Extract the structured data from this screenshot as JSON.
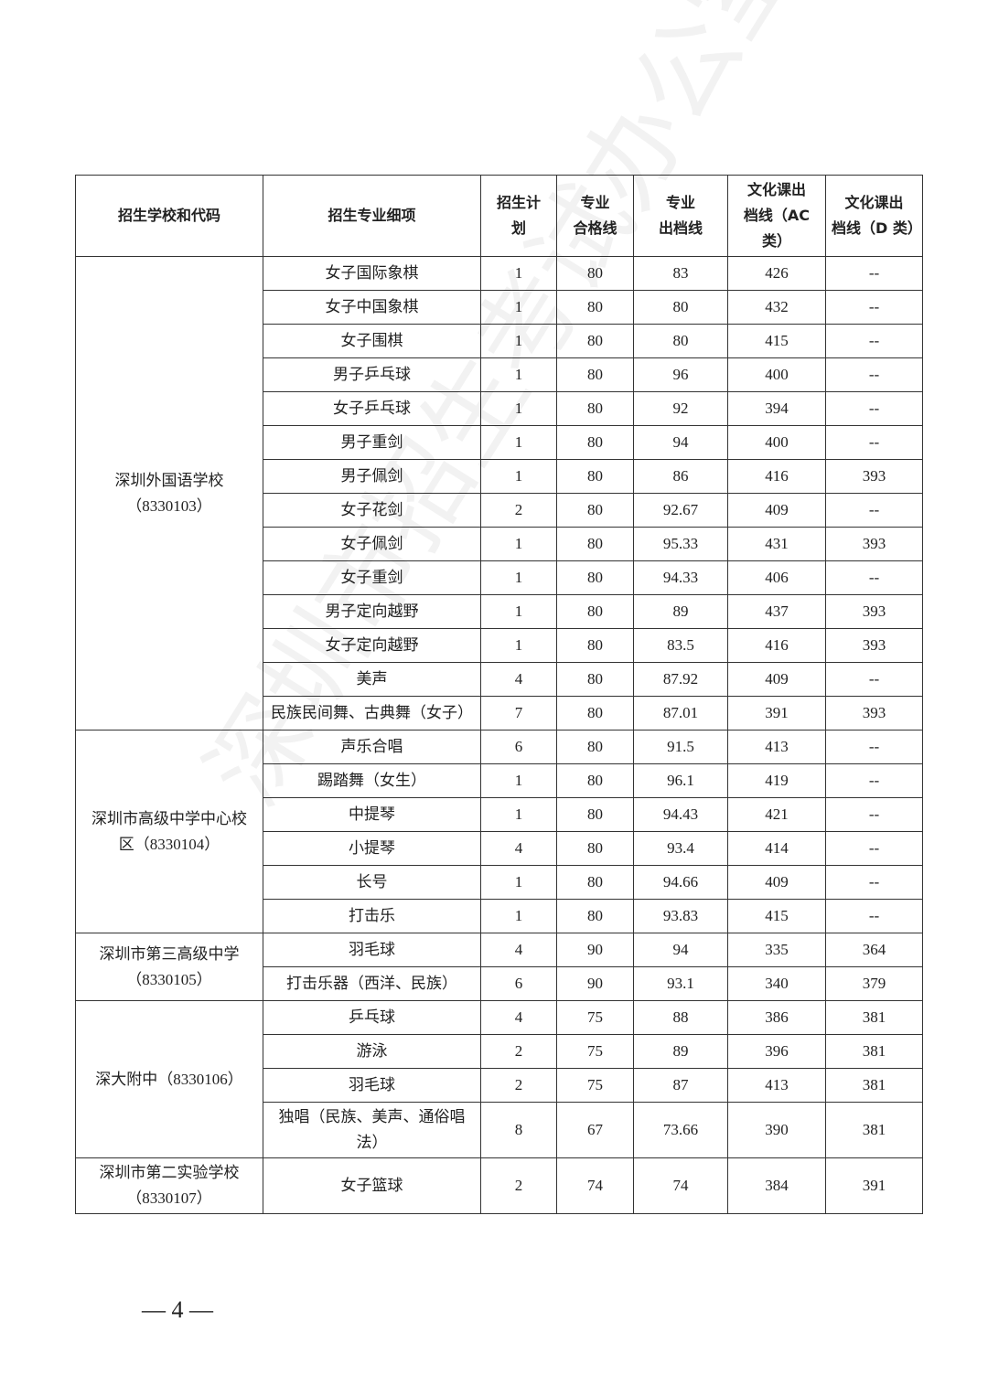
{
  "table": {
    "header": [
      [
        "招生学校和代码"
      ],
      [
        "招生专业细项"
      ],
      [
        "招生计",
        "划"
      ],
      [
        "专业",
        "合格线"
      ],
      [
        "专业",
        "出档线"
      ],
      [
        "文化课出",
        "档线（AC",
        "类）"
      ],
      [
        "文化课出",
        "档线（D 类）"
      ]
    ],
    "groups": [
      {
        "school": [
          "深圳外国语学校",
          "（8330103）"
        ],
        "rows": [
          [
            "女子国际象棋",
            "1",
            "80",
            "83",
            "426",
            "--"
          ],
          [
            "女子中国象棋",
            "1",
            "80",
            "80",
            "432",
            "--"
          ],
          [
            "女子围棋",
            "1",
            "80",
            "80",
            "415",
            "--"
          ],
          [
            "男子乒乓球",
            "1",
            "80",
            "96",
            "400",
            "--"
          ],
          [
            "女子乒乓球",
            "1",
            "80",
            "92",
            "394",
            "--"
          ],
          [
            "男子重剑",
            "1",
            "80",
            "94",
            "400",
            "--"
          ],
          [
            "男子佩剑",
            "1",
            "80",
            "86",
            "416",
            "393"
          ],
          [
            "女子花剑",
            "2",
            "80",
            "92.67",
            "409",
            "--"
          ],
          [
            "女子佩剑",
            "1",
            "80",
            "95.33",
            "431",
            "393"
          ],
          [
            "女子重剑",
            "1",
            "80",
            "94.33",
            "406",
            "--"
          ],
          [
            "男子定向越野",
            "1",
            "80",
            "89",
            "437",
            "393"
          ],
          [
            "女子定向越野",
            "1",
            "80",
            "83.5",
            "416",
            "393"
          ],
          [
            "美声",
            "4",
            "80",
            "87.92",
            "409",
            "--"
          ],
          [
            "民族民间舞、古典舞（女子）",
            "7",
            "80",
            "87.01",
            "391",
            "393"
          ]
        ]
      },
      {
        "school": [
          "深圳市高级中学中心校",
          "区（8330104）"
        ],
        "rows": [
          [
            "声乐合唱",
            "6",
            "80",
            "91.5",
            "413",
            "--"
          ],
          [
            "踢踏舞（女生）",
            "1",
            "80",
            "96.1",
            "419",
            "--"
          ],
          [
            "中提琴",
            "1",
            "80",
            "94.43",
            "421",
            "--"
          ],
          [
            "小提琴",
            "4",
            "80",
            "93.4",
            "414",
            "--"
          ],
          [
            "长号",
            "1",
            "80",
            "94.66",
            "409",
            "--"
          ],
          [
            "打击乐",
            "1",
            "80",
            "93.83",
            "415",
            "--"
          ]
        ]
      },
      {
        "school": [
          "深圳市第三高级中学",
          "（8330105）"
        ],
        "rows": [
          [
            "羽毛球",
            "4",
            "90",
            "94",
            "335",
            "364"
          ],
          [
            "打击乐器（西洋、民族）",
            "6",
            "90",
            "93.1",
            "340",
            "379"
          ]
        ]
      },
      {
        "school": [
          "深大附中（8330106）"
        ],
        "rows": [
          [
            "乒乓球",
            "4",
            "75",
            "88",
            "386",
            "381"
          ],
          [
            "游泳",
            "2",
            "75",
            "89",
            "396",
            "381"
          ],
          [
            "羽毛球",
            "2",
            "75",
            "87",
            "413",
            "381"
          ],
          [
            "独唱（民族、美声、通俗唱法）",
            "8",
            "67",
            "73.66",
            "390",
            "381"
          ]
        ]
      },
      {
        "school": [
          "深圳市第二实验学校",
          "（8330107）"
        ],
        "rows": [
          [
            "女子篮球",
            "2",
            "74",
            "74",
            "384",
            "391"
          ]
        ]
      }
    ]
  },
  "watermark": "深圳市招生考试办公室",
  "footer": {
    "page": "— 4 —"
  }
}
